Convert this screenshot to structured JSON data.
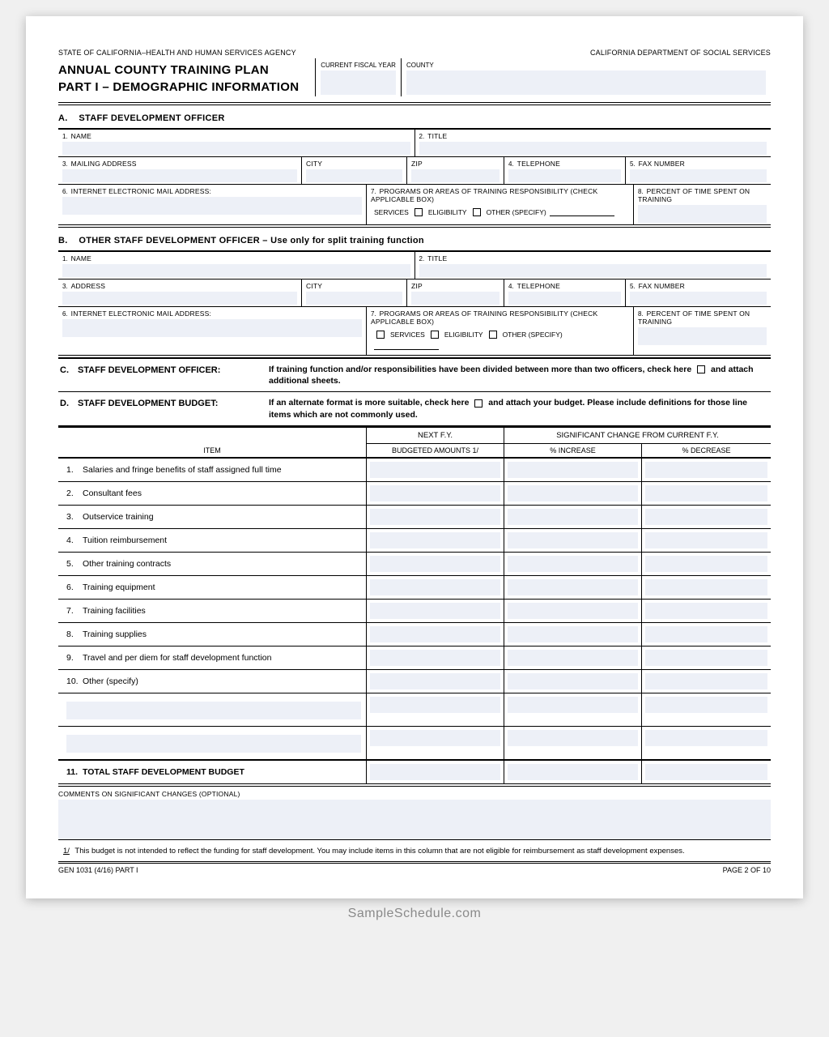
{
  "header": {
    "agency_left": "STATE OF CALIFORNIA–HEALTH AND HUMAN SERVICES AGENCY",
    "agency_right": "CALIFORNIA DEPARTMENT OF SOCIAL SERVICES",
    "title1": "ANNUAL COUNTY TRAINING PLAN",
    "title2": "PART I – DEMOGRAPHIC INFORMATION",
    "fiscal_label": "CURRENT FISCAL YEAR",
    "county_label": "COUNTY"
  },
  "secA": {
    "heading": "STAFF DEVELOPMENT OFFICER",
    "letter": "A.",
    "f1": "NAME",
    "f2": "TITLE",
    "f3": "MAILING ADDRESS",
    "city": "CITY",
    "zip": "ZIP",
    "f4": "TELEPHONE",
    "f5": "FAX NUMBER",
    "f6": "INTERNET ELECTRONIC MAIL ADDRESS:",
    "f7": "PROGRAMS OR AREAS OF TRAINING RESPONSIBILITY (CHECK APPLICABLE BOX)",
    "f8": "PERCENT OF TIME SPENT ON TRAINING",
    "opt_services": "SERVICES",
    "opt_elig": "ELIGIBILITY",
    "opt_other": "OTHER (SPECIFY)"
  },
  "secB": {
    "heading": "OTHER STAFF DEVELOPMENT OFFICER – Use only for split training function",
    "letter": "B.",
    "f1": "NAME",
    "f2": "TITLE",
    "f3": "ADDRESS",
    "city": "CITY",
    "zip": "ZIP",
    "f4": "TELEPHONE",
    "f5": "FAX NUMBER",
    "f6": "INTERNET ELECTRONIC MAIL ADDRESS:",
    "f7": "PROGRAMS OR AREAS OF TRAINING RESPONSIBILITY (CHECK APPLICABLE BOX)",
    "f8": "PERCENT OF TIME SPENT ON TRAINING",
    "opt_services": "SERVICES",
    "opt_elig": "ELIGIBILITY",
    "opt_other": "OTHER (SPECIFY)"
  },
  "secC": {
    "letter": "C.",
    "label": "STAFF DEVELOPMENT OFFICER:",
    "text_a": "If training function and/or responsibilities have been divided between more than two officers, check here",
    "text_b": "and attach additional sheets."
  },
  "secD": {
    "letter": "D.",
    "label": "STAFF DEVELOPMENT BUDGET:",
    "text_a": "If an alternate format is more suitable, check here",
    "text_b": "and attach your budget. Please include definitions for those line items which are not commonly used."
  },
  "budget": {
    "col_item": "ITEM",
    "col_next": "NEXT F.Y.",
    "col_amt": "BUDGETED AMOUNTS 1/",
    "col_sig": "SIGNIFICANT CHANGE FROM CURRENT F.Y.",
    "col_inc": "% INCREASE",
    "col_dec": "% DECREASE",
    "rows": [
      {
        "n": "1.",
        "label": "Salaries and fringe benefits of staff assigned full time"
      },
      {
        "n": "2.",
        "label": "Consultant fees"
      },
      {
        "n": "3.",
        "label": "Outservice training"
      },
      {
        "n": "4.",
        "label": "Tuition reimbursement"
      },
      {
        "n": "5.",
        "label": "Other training contracts"
      },
      {
        "n": "6.",
        "label": "Training equipment"
      },
      {
        "n": "7.",
        "label": "Training facilities"
      },
      {
        "n": "8.",
        "label": "Training supplies"
      },
      {
        "n": "9.",
        "label": "Travel and per diem for staff development function"
      },
      {
        "n": "10.",
        "label": "Other (specify)"
      }
    ],
    "total": {
      "n": "11.",
      "label": "TOTAL STAFF DEVELOPMENT BUDGET"
    }
  },
  "comments_label": "COMMENTS ON SIGNIFICANT CHANGES (OPTIONAL)",
  "footnote": {
    "mark": "1/",
    "text": "This budget is not intended to reflect the funding for staff development. You may include items in this column that are not eligible for reimbursement as staff development expenses."
  },
  "footer": {
    "form": "GEN 1031 (4/16) PART I",
    "page": "PAGE 2 OF 10"
  },
  "watermark": "SampleSchedule.com"
}
